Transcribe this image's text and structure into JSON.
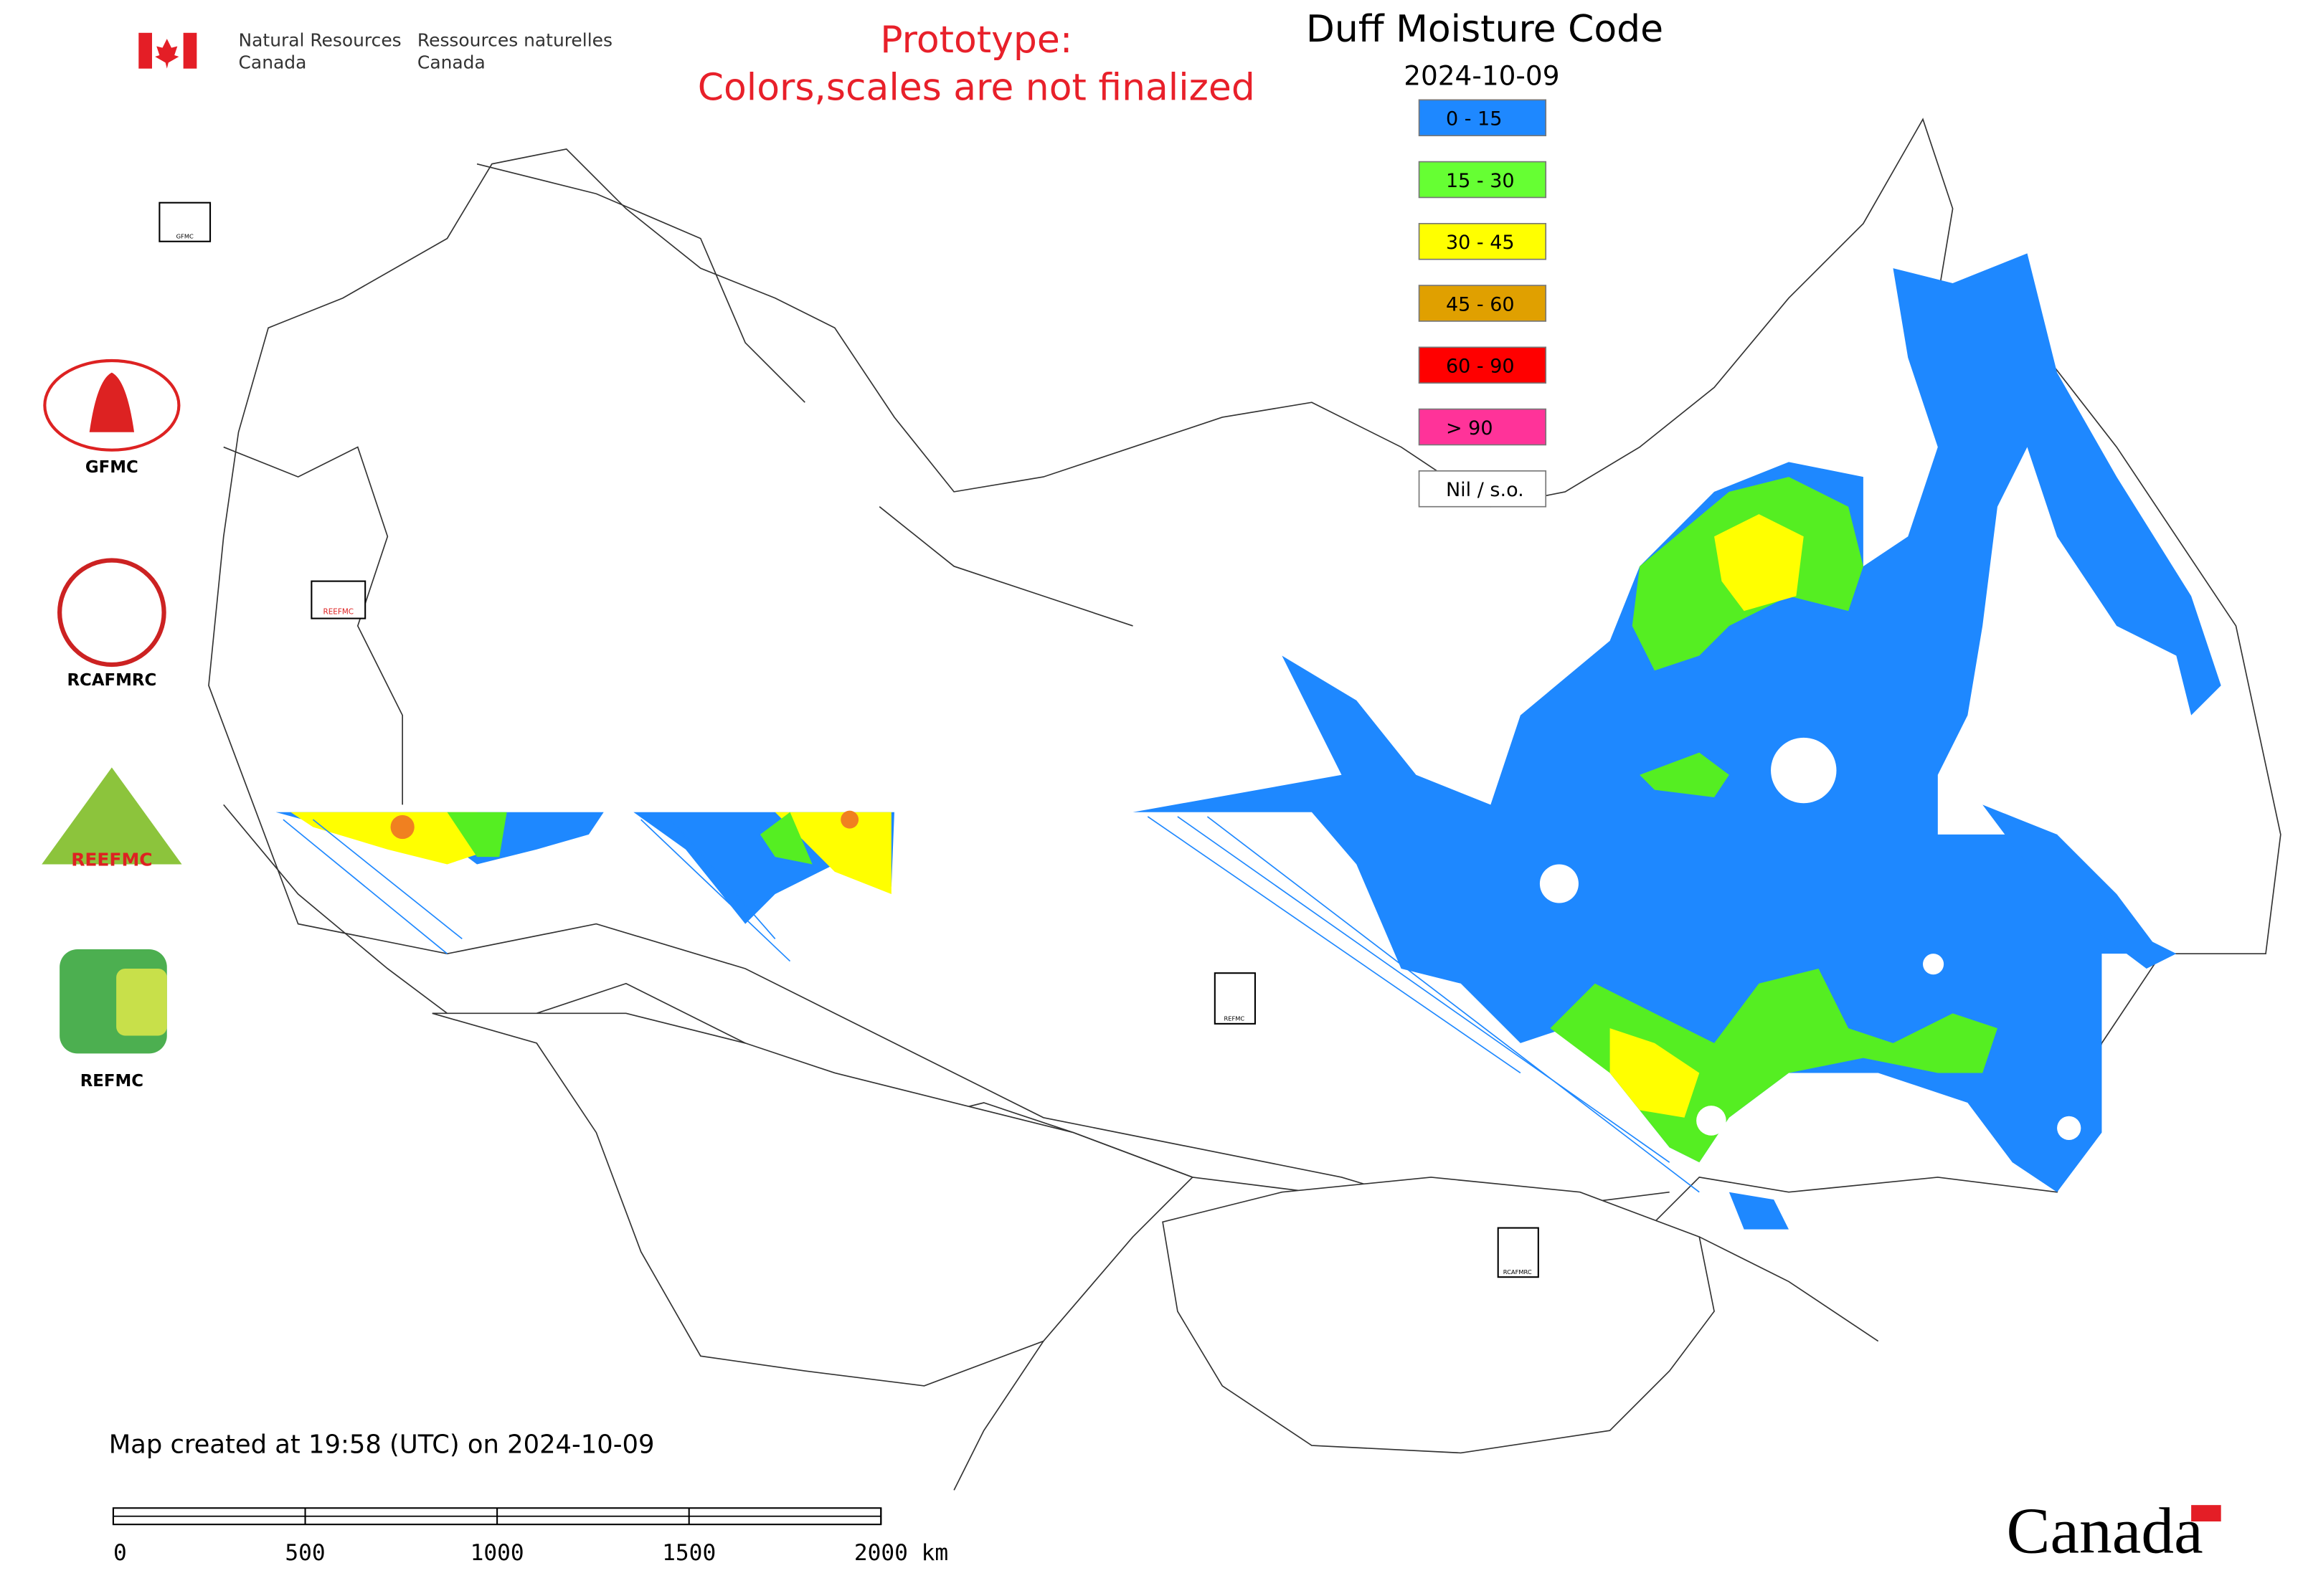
{
  "agency": {
    "en_line1": "Natural Resources",
    "en_line2": "Canada",
    "fr_line1": "Ressources naturelles",
    "fr_line2": "Canada"
  },
  "notice": {
    "line1": "Prototype:",
    "line2": "Colors,scales are not finalized"
  },
  "map": {
    "title": "Duff Moisture Code",
    "date": "2024-10-09",
    "legend": [
      {
        "label": "0 - 15",
        "color": "#1e88ff"
      },
      {
        "label": "15 - 30",
        "color": "#66ff33"
      },
      {
        "label": "30 - 45",
        "color": "#ffff00"
      },
      {
        "label": "45 - 60",
        "color": "#e0a000"
      },
      {
        "label": "60 - 90",
        "color": "#ff0000"
      },
      {
        "label": "> 90",
        "color": "#ff3399"
      },
      {
        "label": "Nil / s.o.",
        "color": "#ffffff"
      }
    ],
    "footer": "Map created at 19:58 (UTC) on 2024-10-09",
    "scale_bar": {
      "ticks": [
        0,
        500,
        1000,
        1500,
        {
          "value": 2000,
          "label": "2000 km"
        }
      ]
    }
  },
  "logos": [
    "GFMC",
    "RCAFMRC",
    "REEFMC",
    "REFMC"
  ],
  "wordmark": "Canada"
}
